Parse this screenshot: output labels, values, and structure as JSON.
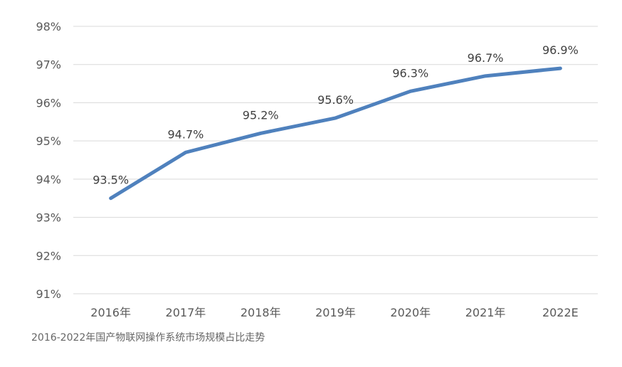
{
  "caption": "2016-2022年国产物联网操作系统市场规模占比走势",
  "chart_data": {
    "type": "line",
    "title": "",
    "xlabel": "",
    "ylabel": "",
    "categories": [
      "2016年",
      "2017年",
      "2018年",
      "2019年",
      "2020年",
      "2021年",
      "2022E"
    ],
    "series": [
      {
        "values": [
          93.5,
          94.7,
          95.2,
          95.6,
          96.3,
          96.7,
          96.9
        ],
        "labels": [
          "93.5%",
          "94.7%",
          "95.2%",
          "95.6%",
          "96.3%",
          "96.7%",
          "96.9%"
        ],
        "color": "#4f81bd"
      }
    ],
    "ylim": [
      91,
      98
    ],
    "yticks": [
      91,
      92,
      93,
      94,
      95,
      96,
      97,
      98
    ],
    "ytick_labels": [
      "91%",
      "92%",
      "93%",
      "94%",
      "95%",
      "96%",
      "97%",
      "98%"
    ],
    "grid": true,
    "legend": "none"
  }
}
